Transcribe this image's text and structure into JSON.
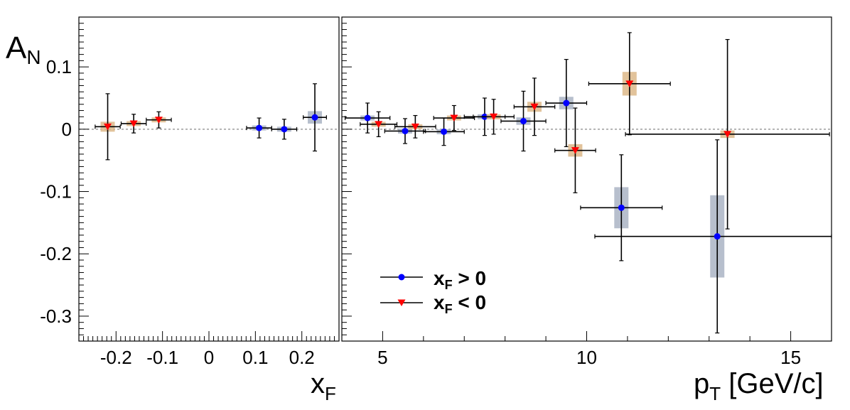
{
  "chart_data": [
    {
      "type": "scatter",
      "panel": "left",
      "xlabel_main": "x",
      "xlabel_sub": "F",
      "ylabel_main": "A",
      "ylabel_sub": "N",
      "xlim": [
        -0.28,
        0.28
      ],
      "ylim": [
        -0.34,
        0.18
      ],
      "xticks": [
        -0.2,
        -0.1,
        0,
        0.1,
        0.2
      ],
      "xtick_labels": [
        "-0.2",
        "-0.1",
        "0",
        "0.1",
        "0.2"
      ],
      "yticks": [
        0.1,
        0,
        -0.1,
        -0.2,
        -0.3
      ],
      "ytick_labels": [
        "0.1",
        "0",
        "-0.1",
        "-0.2",
        "-0.3"
      ],
      "series": [
        {
          "key": "pos",
          "color": "#0000ff",
          "sys_color": "#aab4c4",
          "marker": "circle",
          "points": [
            {
              "x": 0.108,
              "y": 0.002,
              "ex": 0.027,
              "ey": 0.016,
              "sys": 0.004
            },
            {
              "x": 0.162,
              "y": 0.0,
              "ex": 0.027,
              "ey": 0.016,
              "sys": 0.004
            },
            {
              "x": 0.228,
              "y": 0.019,
              "ex": 0.025,
              "ey": 0.054,
              "sys": 0.01
            }
          ]
        },
        {
          "key": "neg",
          "color": "#ff0000",
          "sys_color": "#ddb98a",
          "marker": "triangle-down",
          "points": [
            {
              "x": -0.218,
              "y": 0.004,
              "ex": 0.027,
              "ey": 0.053,
              "sys": 0.008
            },
            {
              "x": -0.162,
              "y": 0.009,
              "ex": 0.027,
              "ey": 0.015,
              "sys": 0.004
            },
            {
              "x": -0.108,
              "y": 0.015,
              "ex": 0.027,
              "ey": 0.013,
              "sys": 0.004
            }
          ]
        }
      ]
    },
    {
      "type": "scatter",
      "panel": "right",
      "xlabel_main": "p",
      "xlabel_sub": "T",
      "xlabel_rest": " [GeV/c]",
      "xlim": [
        4.0,
        16.0
      ],
      "ylim": [
        -0.34,
        0.18
      ],
      "xticks": [
        5,
        10,
        15
      ],
      "xtick_labels": [
        "5",
        "10",
        "15"
      ],
      "series": [
        {
          "key": "pos",
          "color": "#0000ff",
          "sys_color": "#aab4c4",
          "marker": "circle",
          "points": [
            {
              "x": 4.63,
              "y": 0.018,
              "ex": 0.55,
              "ey": 0.024,
              "sys": 0.004
            },
            {
              "x": 5.55,
              "y": -0.003,
              "ex": 0.5,
              "ey": 0.02,
              "sys": 0.004
            },
            {
              "x": 6.5,
              "y": -0.004,
              "ex": 0.5,
              "ey": 0.022,
              "sys": 0.004
            },
            {
              "x": 7.5,
              "y": 0.02,
              "ex": 0.5,
              "ey": 0.03,
              "sys": 0.004
            },
            {
              "x": 8.45,
              "y": 0.013,
              "ex": 0.55,
              "ey": 0.048,
              "sys": 0.006
            },
            {
              "x": 9.5,
              "y": 0.042,
              "ex": 0.5,
              "ey": 0.07,
              "sys": 0.01
            },
            {
              "x": 10.85,
              "y": -0.126,
              "ex": 1.0,
              "ey": 0.085,
              "sys": 0.033
            },
            {
              "x": 13.2,
              "y": -0.172,
              "ex": 3.0,
              "ey": 0.155,
              "sys": 0.066
            }
          ]
        },
        {
          "key": "neg",
          "color": "#ff0000",
          "sys_color": "#ddb98a",
          "marker": "triangle-down",
          "points": [
            {
              "x": 4.9,
              "y": 0.008,
              "ex": 0.45,
              "ey": 0.02,
              "sys": 0.004
            },
            {
              "x": 5.8,
              "y": 0.004,
              "ex": 0.5,
              "ey": 0.018,
              "sys": 0.004
            },
            {
              "x": 6.75,
              "y": 0.018,
              "ex": 0.5,
              "ey": 0.02,
              "sys": 0.004
            },
            {
              "x": 7.72,
              "y": 0.02,
              "ex": 0.5,
              "ey": 0.028,
              "sys": 0.004
            },
            {
              "x": 8.72,
              "y": 0.036,
              "ex": 0.5,
              "ey": 0.046,
              "sys": 0.008
            },
            {
              "x": 9.72,
              "y": -0.034,
              "ex": 0.5,
              "ey": 0.068,
              "sys": 0.01
            },
            {
              "x": 11.05,
              "y": 0.073,
              "ex": 1.0,
              "ey": 0.082,
              "sys": 0.019
            },
            {
              "x": 13.45,
              "y": -0.008,
              "ex": 2.5,
              "ey": 0.152,
              "sys": 0.006
            }
          ]
        }
      ]
    }
  ],
  "legend": [
    {
      "key": "pos",
      "main": "x",
      "sub": "F",
      "rest": " > 0",
      "color": "#0000ff",
      "marker": "circle"
    },
    {
      "key": "neg",
      "main": "x",
      "sub": "F",
      "rest": " < 0",
      "color": "#ff0000",
      "marker": "triangle-down"
    }
  ]
}
